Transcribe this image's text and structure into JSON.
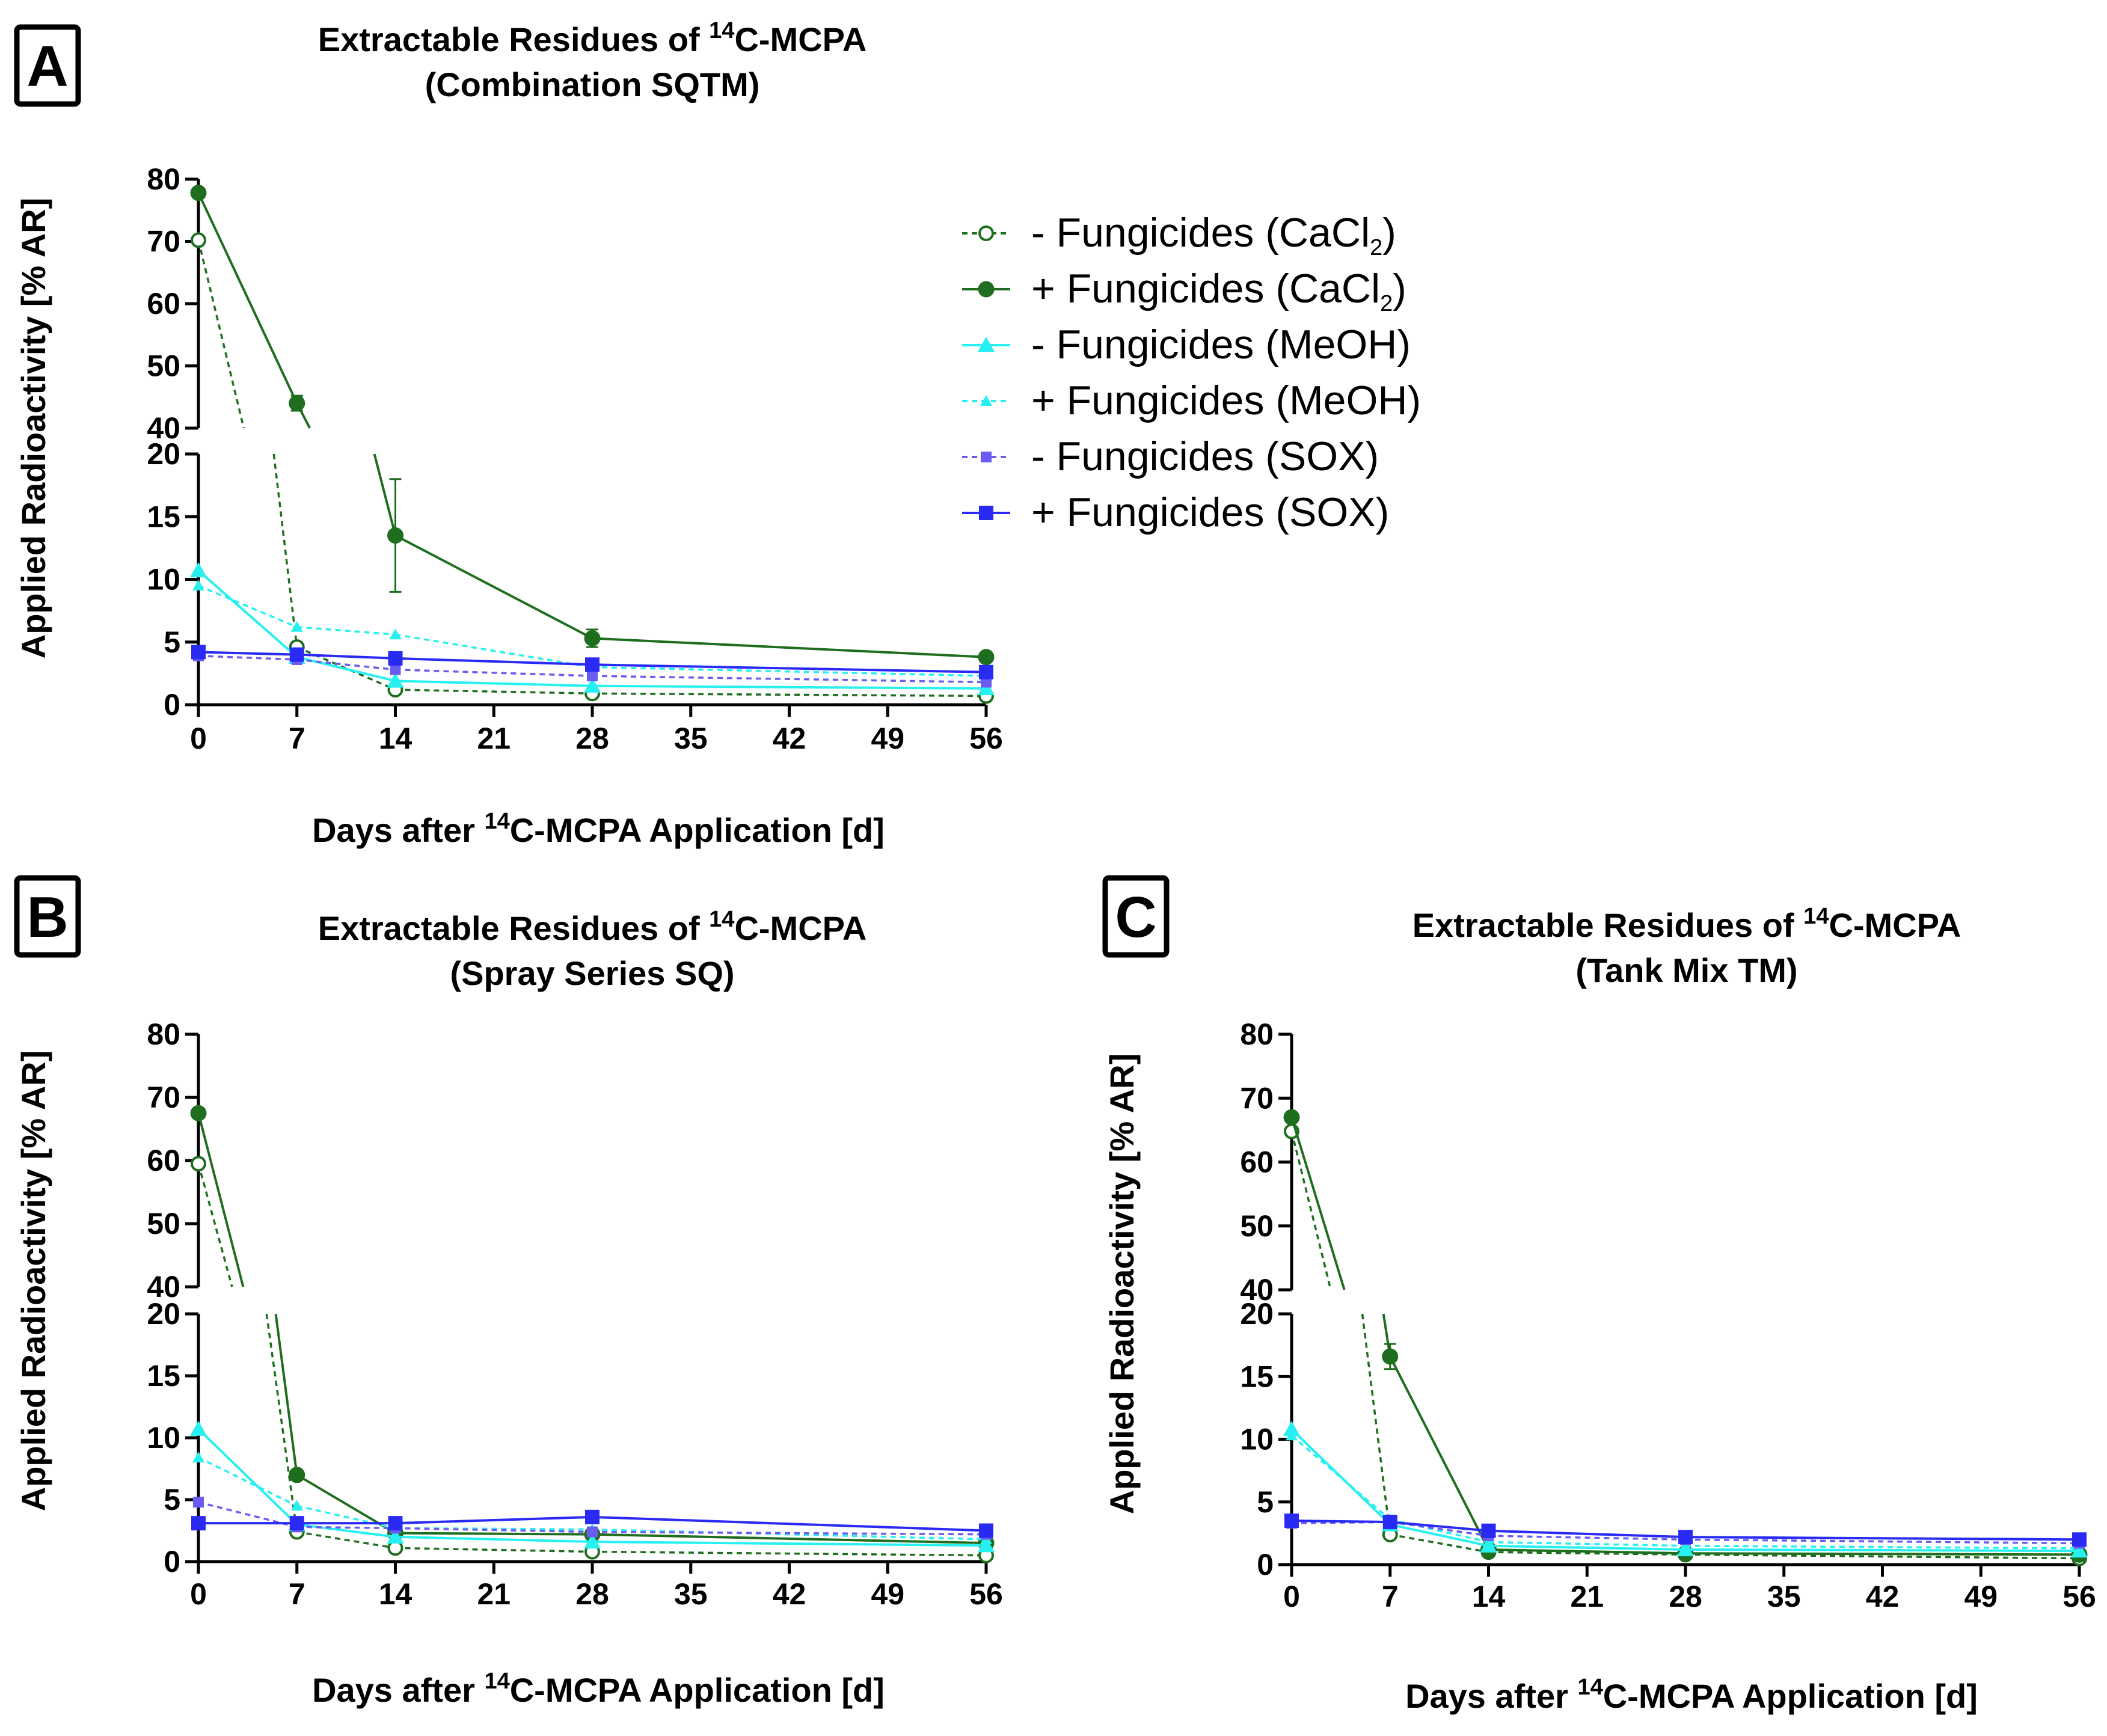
{
  "figure": {
    "legend": [
      {
        "id": "mf_cacl2",
        "label": "- Fungicides (CaCl",
        "sub": "2",
        "tail": ")"
      },
      {
        "id": "pf_cacl2",
        "label": "+ Fungicides (CaCl",
        "sub": "2",
        "tail": ")"
      },
      {
        "id": "mf_meoh",
        "label": "- Fungicides (MeOH)",
        "sub": "",
        "tail": ""
      },
      {
        "id": "pf_meoh",
        "label": "+ Fungicides (MeOH)",
        "sub": "",
        "tail": ""
      },
      {
        "id": "mf_sox",
        "label": "- Fungicides (SOX)",
        "sub": "",
        "tail": ""
      },
      {
        "id": "pf_sox",
        "label": "+ Fungicides (SOX)",
        "sub": "",
        "tail": ""
      }
    ],
    "series_styles": {
      "mf_cacl2": {
        "color": "#1f6e1f",
        "marker": "circle-open",
        "dash": true
      },
      "pf_cacl2": {
        "color": "#1f6e1f",
        "marker": "circle",
        "dash": false
      },
      "mf_meoh": {
        "color": "#28f0f0",
        "marker": "triangle",
        "dash": false
      },
      "pf_meoh": {
        "color": "#28f0f0",
        "marker": "triangle-small",
        "dash": true
      },
      "mf_sox": {
        "color": "#6a5cf0",
        "marker": "square-small",
        "dash": true
      },
      "pf_sox": {
        "color": "#2a2af5",
        "marker": "square",
        "dash": false
      }
    }
  },
  "chart_data": [
    {
      "type": "line",
      "panel": "A",
      "title_prefix": "Extractable Residues of ",
      "title_sup": "14",
      "title_suffix": "C-MCPA",
      "subtitle": "(Combination SQTM)",
      "xlabel_prefix": "Days after ",
      "xlabel_sup": "14",
      "xlabel_suffix": "C-MCPA Application [d]",
      "ylabel": "Applied Radioactivity [% AR]",
      "x": [
        0,
        7,
        14,
        28,
        56
      ],
      "xticks": [
        "0",
        "7",
        "14",
        "21",
        "28",
        "35",
        "42",
        "49",
        "56"
      ],
      "ylim_lower": [
        0,
        20
      ],
      "ylim_upper": [
        40,
        80
      ],
      "yticks_lower": [
        "0",
        "5",
        "10",
        "15",
        "20"
      ],
      "yticks_upper": [
        "40",
        "50",
        "60",
        "70",
        "80"
      ],
      "series": [
        {
          "id": "mf_cacl2",
          "values": [
            70.2,
            4.6,
            1.2,
            0.9,
            0.7
          ]
        },
        {
          "id": "pf_cacl2",
          "values": [
            77.8,
            44.0,
            13.5,
            5.3,
            3.8
          ],
          "errors": [
            0.5,
            1.2,
            4.5,
            0.7,
            0.2
          ]
        },
        {
          "id": "mf_meoh",
          "values": [
            10.7,
            3.8,
            1.9,
            1.5,
            1.3
          ]
        },
        {
          "id": "pf_meoh",
          "values": [
            9.5,
            6.2,
            5.6,
            3.0,
            2.3
          ]
        },
        {
          "id": "mf_sox",
          "values": [
            3.9,
            3.6,
            2.8,
            2.3,
            1.8
          ]
        },
        {
          "id": "pf_sox",
          "values": [
            4.2,
            4.0,
            3.7,
            3.2,
            2.6
          ]
        }
      ]
    },
    {
      "type": "line",
      "panel": "B",
      "title_prefix": "Extractable Residues of ",
      "title_sup": "14",
      "title_suffix": "C-MCPA",
      "subtitle": "(Spray Series SQ)",
      "xlabel_prefix": "Days after ",
      "xlabel_sup": "14",
      "xlabel_suffix": "C-MCPA Application [d]",
      "ylabel": "Applied Radioactivity [% AR]",
      "x": [
        0,
        7,
        14,
        28,
        56
      ],
      "xticks": [
        "0",
        "7",
        "14",
        "21",
        "28",
        "35",
        "42",
        "49",
        "56"
      ],
      "ylim_lower": [
        0,
        20
      ],
      "ylim_upper": [
        40,
        80
      ],
      "yticks_lower": [
        "0",
        "5",
        "10",
        "15",
        "20"
      ],
      "yticks_upper": [
        "40",
        "50",
        "60",
        "70",
        "80"
      ],
      "series": [
        {
          "id": "mf_cacl2",
          "values": [
            59.5,
            2.4,
            1.1,
            0.8,
            0.5
          ]
        },
        {
          "id": "pf_cacl2",
          "values": [
            67.5,
            7.0,
            2.3,
            2.2,
            1.5
          ]
        },
        {
          "id": "mf_meoh",
          "values": [
            10.7,
            3.0,
            2.0,
            1.6,
            1.3
          ]
        },
        {
          "id": "pf_meoh",
          "values": [
            8.4,
            4.5,
            2.7,
            2.6,
            1.8
          ]
        },
        {
          "id": "mf_sox",
          "values": [
            4.8,
            2.8,
            2.7,
            2.4,
            2.2
          ]
        },
        {
          "id": "pf_sox",
          "values": [
            3.1,
            3.1,
            3.1,
            3.6,
            2.5
          ]
        }
      ]
    },
    {
      "type": "line",
      "panel": "C",
      "title_prefix": "Extractable Residues of ",
      "title_sup": "14",
      "title_suffix": "C-MCPA",
      "subtitle": "(Tank Mix TM)",
      "xlabel_prefix": "Days after ",
      "xlabel_sup": "14",
      "xlabel_suffix": "C-MCPA Application [d]",
      "ylabel": "Applied Radioactivity [% AR]",
      "x": [
        0,
        7,
        14,
        28,
        56
      ],
      "xticks": [
        "0",
        "7",
        "14",
        "21",
        "28",
        "35",
        "42",
        "49",
        "56"
      ],
      "ylim_lower": [
        0,
        20
      ],
      "ylim_upper": [
        40,
        80
      ],
      "yticks_lower": [
        "0",
        "5",
        "10",
        "15",
        "20"
      ],
      "yticks_upper": [
        "40",
        "50",
        "60",
        "70",
        "80"
      ],
      "series": [
        {
          "id": "mf_cacl2",
          "values": [
            64.8,
            2.4,
            1.0,
            0.8,
            0.5
          ]
        },
        {
          "id": "pf_cacl2",
          "values": [
            67.0,
            16.6,
            1.2,
            0.9,
            0.8
          ],
          "errors": [
            0.5,
            1.0,
            0.2,
            0.1,
            0.1
          ]
        },
        {
          "id": "mf_meoh",
          "values": [
            10.8,
            3.2,
            1.5,
            1.2,
            1.1
          ]
        },
        {
          "id": "pf_meoh",
          "values": [
            10.3,
            3.6,
            1.8,
            1.5,
            1.3
          ]
        },
        {
          "id": "mf_sox",
          "values": [
            3.3,
            3.4,
            2.3,
            2.0,
            1.7
          ]
        },
        {
          "id": "pf_sox",
          "values": [
            3.5,
            3.4,
            2.7,
            2.2,
            2.0
          ]
        }
      ]
    }
  ]
}
